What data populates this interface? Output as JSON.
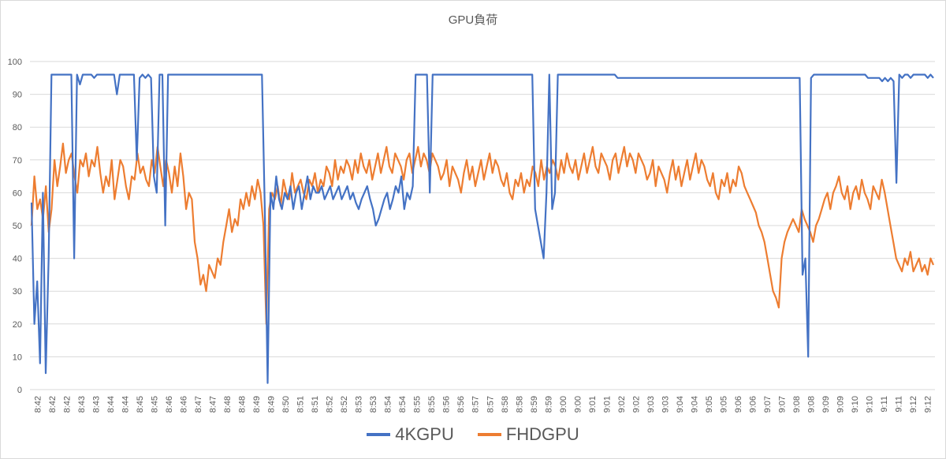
{
  "chart_data": {
    "type": "line",
    "title": "GPU負荷",
    "xlabel": "",
    "ylabel": "",
    "ylim": [
      0,
      100
    ],
    "y_ticks": [
      0,
      10,
      20,
      30,
      40,
      50,
      60,
      70,
      80,
      90,
      100
    ],
    "x_tick_labels": [
      "8:42",
      "8:42",
      "8:42",
      "8:43",
      "8:43",
      "8:44",
      "8:44",
      "8:45",
      "8:45",
      "8:46",
      "8:46",
      "8:47",
      "8:47",
      "8:48",
      "8:48",
      "8:49",
      "8:49",
      "8:50",
      "8:51",
      "8:51",
      "8:52",
      "8:52",
      "8:53",
      "8:53",
      "8:54",
      "8:54",
      "8:55",
      "8:55",
      "8:56",
      "8:56",
      "8:57",
      "8:57",
      "8:58",
      "8:58",
      "8:59",
      "8:59",
      "9:00",
      "9:00",
      "9:01",
      "9:01",
      "9:02",
      "9:02",
      "9:03",
      "9:03",
      "9:04",
      "9:04",
      "9:05",
      "9:05",
      "9:06",
      "9:06",
      "9:07",
      "9:07",
      "9:08",
      "9:08",
      "9:09",
      "9:09",
      "9:10",
      "9:10",
      "9:11",
      "9:11",
      "9:12",
      "9:12"
    ],
    "grid": "horizontal",
    "legend_position": "bottom",
    "series": [
      {
        "name": "4KGPU",
        "color": "#4472c4",
        "values": [
          57,
          20,
          33,
          8,
          60,
          5,
          40,
          96,
          96,
          96,
          96,
          96,
          96,
          96,
          96,
          40,
          96,
          93,
          96,
          96,
          96,
          96,
          95,
          96,
          96,
          96,
          96,
          96,
          96,
          96,
          90,
          96,
          96,
          96,
          96,
          96,
          96,
          70,
          95,
          96,
          95,
          96,
          95,
          65,
          60,
          96,
          96,
          50,
          96,
          96,
          96,
          96,
          96,
          96,
          96,
          96,
          96,
          96,
          96,
          96,
          96,
          96,
          96,
          96,
          96,
          96,
          96,
          96,
          96,
          96,
          96,
          96,
          96,
          96,
          96,
          96,
          96,
          96,
          96,
          96,
          96,
          96,
          55,
          2,
          60,
          55,
          65,
          58,
          55,
          60,
          58,
          62,
          55,
          60,
          62,
          55,
          60,
          65,
          58,
          62,
          60,
          60,
          62,
          58,
          60,
          62,
          58,
          60,
          62,
          58,
          60,
          62,
          58,
          60,
          57,
          55,
          58,
          60,
          62,
          58,
          55,
          50,
          52,
          55,
          58,
          60,
          55,
          58,
          62,
          60,
          65,
          55,
          60,
          58,
          62,
          96,
          96,
          96,
          96,
          96,
          60,
          96,
          96,
          96,
          96,
          96,
          96,
          96,
          96,
          96,
          96,
          96,
          96,
          96,
          96,
          96,
          96,
          96,
          96,
          96,
          96,
          96,
          96,
          96,
          96,
          96,
          96,
          96,
          96,
          96,
          96,
          96,
          96,
          96,
          96,
          96,
          96,
          55,
          50,
          45,
          40,
          60,
          96,
          55,
          60,
          96,
          96,
          96,
          96,
          96,
          96,
          96,
          96,
          96,
          96,
          96,
          96,
          96,
          96,
          96,
          96,
          96,
          96,
          96,
          96,
          96,
          95,
          95,
          95,
          95,
          95,
          95,
          95,
          95,
          95,
          95,
          95,
          95,
          95,
          95,
          95,
          95,
          95,
          95,
          95,
          95,
          95,
          95,
          95,
          95,
          95,
          95,
          95,
          95,
          95,
          95,
          95,
          95,
          95,
          95,
          95,
          95,
          95,
          95,
          95,
          95,
          95,
          95,
          95,
          95,
          95,
          95,
          95,
          95,
          95,
          95,
          95,
          95,
          95,
          95,
          95,
          95,
          95,
          95,
          95,
          95,
          95,
          95,
          95,
          95,
          95,
          35,
          40,
          10,
          95,
          96,
          96,
          96,
          96,
          96,
          96,
          96,
          96,
          96,
          96,
          96,
          96,
          96,
          96,
          96,
          96,
          96,
          96,
          96,
          95,
          95,
          95,
          95,
          95,
          94,
          95,
          94,
          95,
          94,
          63,
          96,
          95,
          96,
          96,
          95,
          96,
          96,
          96,
          96,
          96,
          95,
          96,
          95
        ]
      },
      {
        "name": "FHDGPU",
        "color": "#ed7d31",
        "values": [
          50,
          65,
          55,
          58,
          52,
          62,
          48,
          55,
          70,
          62,
          68,
          75,
          66,
          70,
          72,
          65,
          60,
          70,
          68,
          72,
          65,
          70,
          68,
          74,
          66,
          60,
          65,
          62,
          70,
          58,
          64,
          70,
          68,
          62,
          58,
          65,
          64,
          72,
          66,
          68,
          64,
          62,
          70,
          66,
          74,
          68,
          62,
          70,
          66,
          60,
          68,
          62,
          72,
          65,
          55,
          60,
          58,
          45,
          40,
          32,
          35,
          30,
          38,
          36,
          34,
          40,
          38,
          45,
          50,
          55,
          48,
          52,
          50,
          58,
          55,
          60,
          56,
          62,
          58,
          64,
          60,
          50,
          20,
          55,
          60,
          58,
          62,
          56,
          64,
          60,
          58,
          66,
          60,
          62,
          64,
          60,
          58,
          64,
          62,
          66,
          60,
          64,
          62,
          68,
          66,
          62,
          70,
          64,
          68,
          66,
          70,
          68,
          64,
          70,
          66,
          72,
          68,
          66,
          70,
          64,
          68,
          72,
          66,
          70,
          74,
          68,
          66,
          72,
          70,
          68,
          64,
          70,
          72,
          66,
          70,
          74,
          68,
          72,
          70,
          66,
          72,
          70,
          68,
          64,
          66,
          70,
          62,
          68,
          66,
          64,
          60,
          66,
          70,
          64,
          68,
          62,
          66,
          70,
          64,
          68,
          72,
          66,
          70,
          68,
          64,
          62,
          66,
          60,
          58,
          64,
          62,
          66,
          60,
          64,
          62,
          68,
          66,
          62,
          70,
          64,
          68,
          66,
          70,
          68,
          64,
          70,
          66,
          72,
          68,
          66,
          70,
          64,
          68,
          72,
          66,
          70,
          74,
          68,
          66,
          72,
          70,
          68,
          64,
          70,
          72,
          66,
          70,
          74,
          68,
          72,
          70,
          66,
          72,
          70,
          68,
          64,
          66,
          70,
          62,
          68,
          66,
          64,
          60,
          66,
          70,
          64,
          68,
          62,
          66,
          70,
          64,
          68,
          72,
          66,
          70,
          68,
          64,
          62,
          66,
          60,
          58,
          64,
          62,
          66,
          60,
          64,
          62,
          68,
          66,
          62,
          60,
          58,
          56,
          54,
          50,
          48,
          45,
          40,
          35,
          30,
          28,
          25,
          40,
          45,
          48,
          50,
          52,
          50,
          48,
          55,
          52,
          50,
          48,
          45,
          50,
          52,
          55,
          58,
          60,
          55,
          60,
          62,
          65,
          60,
          58,
          62,
          55,
          60,
          62,
          58,
          64,
          60,
          58,
          55,
          62,
          60,
          58,
          64,
          60,
          55,
          50,
          45,
          40,
          38,
          36,
          40,
          38,
          42,
          36,
          38,
          40,
          36,
          38,
          35,
          40,
          38
        ]
      }
    ]
  }
}
